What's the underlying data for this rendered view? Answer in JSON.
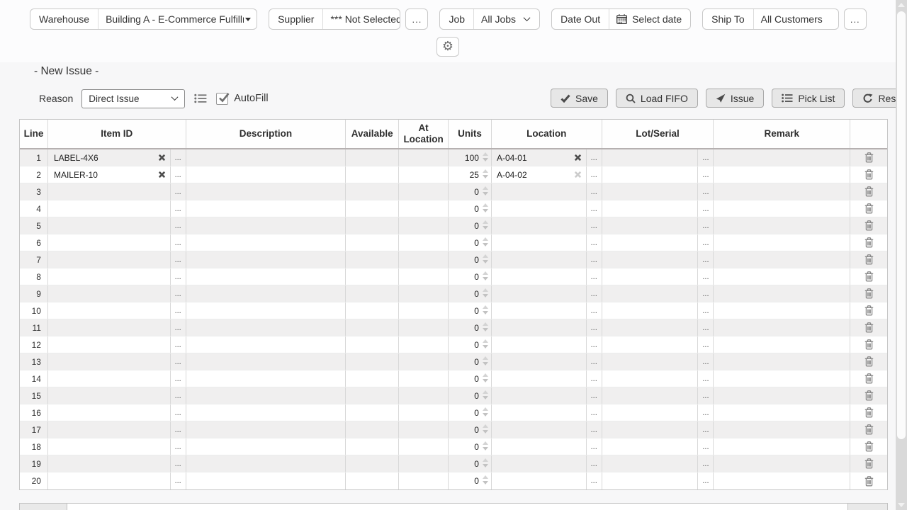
{
  "title": "- New Issue -",
  "topbar": {
    "warehouse": {
      "label": "Warehouse",
      "value": "Building A - E-Commerce Fulfillm"
    },
    "supplier": {
      "label": "Supplier",
      "value": "*** Not Selected",
      "more_label": "..."
    },
    "job": {
      "label": "Job",
      "value": "All Jobs"
    },
    "date_out": {
      "label": "Date Out",
      "value": "Select date"
    },
    "ship_to": {
      "label": "Ship To",
      "value": "All Customers",
      "more_label": "..."
    }
  },
  "reason": {
    "label": "Reason",
    "value": "Direct Issue",
    "autofill_label": "AutoFill",
    "autofill_checked": true
  },
  "actions": {
    "save": "Save",
    "load_fifo": "Load FIFO",
    "issue": "Issue",
    "pick_list": "Pick List",
    "reset": "Reset"
  },
  "table": {
    "headers": [
      "Line",
      "Item ID",
      "Description",
      "Available",
      "At Location",
      "Units",
      "Location",
      "Lot/Serial",
      "Remark"
    ],
    "ellipsis": "...",
    "rows": [
      {
        "line": "1",
        "item": "LABEL-4X6",
        "description": "",
        "available": "",
        "at_location": "",
        "units": "100",
        "location": "A-04-01",
        "location_clear_disabled": false,
        "lot_serial": "",
        "remark": ""
      },
      {
        "line": "2",
        "item": "MAILER-10",
        "description": "",
        "available": "",
        "at_location": "",
        "units": "25",
        "location": "A-04-02",
        "location_clear_disabled": true,
        "lot_serial": "",
        "remark": ""
      },
      {
        "line": "3",
        "item": "",
        "description": "",
        "available": "",
        "at_location": "",
        "units": "0",
        "location": "",
        "lot_serial": "",
        "remark": ""
      },
      {
        "line": "4",
        "item": "",
        "description": "",
        "available": "",
        "at_location": "",
        "units": "0",
        "location": "",
        "lot_serial": "",
        "remark": ""
      },
      {
        "line": "5",
        "item": "",
        "description": "",
        "available": "",
        "at_location": "",
        "units": "0",
        "location": "",
        "lot_serial": "",
        "remark": ""
      },
      {
        "line": "6",
        "item": "",
        "description": "",
        "available": "",
        "at_location": "",
        "units": "0",
        "location": "",
        "lot_serial": "",
        "remark": ""
      },
      {
        "line": "7",
        "item": "",
        "description": "",
        "available": "",
        "at_location": "",
        "units": "0",
        "location": "",
        "lot_serial": "",
        "remark": ""
      },
      {
        "line": "8",
        "item": "",
        "description": "",
        "available": "",
        "at_location": "",
        "units": "0",
        "location": "",
        "lot_serial": "",
        "remark": ""
      },
      {
        "line": "9",
        "item": "",
        "description": "",
        "available": "",
        "at_location": "",
        "units": "0",
        "location": "",
        "lot_serial": "",
        "remark": ""
      },
      {
        "line": "10",
        "item": "",
        "description": "",
        "available": "",
        "at_location": "",
        "units": "0",
        "location": "",
        "lot_serial": "",
        "remark": ""
      },
      {
        "line": "11",
        "item": "",
        "description": "",
        "available": "",
        "at_location": "",
        "units": "0",
        "location": "",
        "lot_serial": "",
        "remark": ""
      },
      {
        "line": "12",
        "item": "",
        "description": "",
        "available": "",
        "at_location": "",
        "units": "0",
        "location": "",
        "lot_serial": "",
        "remark": ""
      },
      {
        "line": "13",
        "item": "",
        "description": "",
        "available": "",
        "at_location": "",
        "units": "0",
        "location": "",
        "lot_serial": "",
        "remark": ""
      },
      {
        "line": "14",
        "item": "",
        "description": "",
        "available": "",
        "at_location": "",
        "units": "0",
        "location": "",
        "lot_serial": "",
        "remark": ""
      },
      {
        "line": "15",
        "item": "",
        "description": "",
        "available": "",
        "at_location": "",
        "units": "0",
        "location": "",
        "lot_serial": "",
        "remark": ""
      },
      {
        "line": "16",
        "item": "",
        "description": "",
        "available": "",
        "at_location": "",
        "units": "0",
        "location": "",
        "lot_serial": "",
        "remark": ""
      },
      {
        "line": "17",
        "item": "",
        "description": "",
        "available": "",
        "at_location": "",
        "units": "0",
        "location": "",
        "lot_serial": "",
        "remark": ""
      },
      {
        "line": "18",
        "item": "",
        "description": "",
        "available": "",
        "at_location": "",
        "units": "0",
        "location": "",
        "lot_serial": "",
        "remark": ""
      },
      {
        "line": "19",
        "item": "",
        "description": "",
        "available": "",
        "at_location": "",
        "units": "0",
        "location": "",
        "lot_serial": "",
        "remark": ""
      },
      {
        "line": "20",
        "item": "",
        "description": "",
        "available": "",
        "at_location": "",
        "units": "0",
        "location": "",
        "lot_serial": "",
        "remark": ""
      }
    ]
  },
  "colors": {
    "row_shade": "#f0efef",
    "button_bg": "#e7e7e7",
    "border": "#c9c9c9"
  }
}
